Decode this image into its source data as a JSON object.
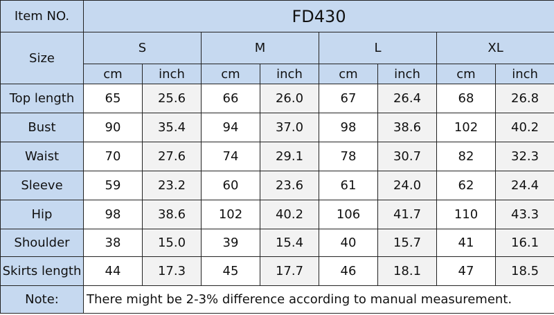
{
  "header": {
    "item_label": "Item NO.",
    "item_value": "FD430",
    "size_label": "Size",
    "sizes": [
      {
        "name": "S",
        "units": [
          "cm",
          "inch"
        ]
      },
      {
        "name": "M",
        "units": [
          "cm",
          "inch"
        ]
      },
      {
        "name": "L",
        "units": [
          "cm",
          "inch"
        ]
      },
      {
        "name": "XL",
        "units": [
          "cm",
          "inch"
        ]
      }
    ]
  },
  "table": {
    "rows": [
      [
        "Top  length",
        "65",
        "25.6",
        "66",
        "26.0",
        "67",
        "26.4",
        "68",
        "26.8"
      ],
      [
        "Bust",
        "90",
        "35.4",
        "94",
        "37.0",
        "98",
        "38.6",
        "102",
        "40.2"
      ],
      [
        "Waist",
        "70",
        "27.6",
        "74",
        "29.1",
        "78",
        "30.7",
        "82",
        "32.3"
      ],
      [
        "Sleeve",
        "59",
        "23.2",
        "60",
        "23.6",
        "61",
        "24.0",
        "62",
        "24.4"
      ],
      [
        "Hip",
        "98",
        "38.6",
        "102",
        "40.2",
        "106",
        "41.7",
        "110",
        "43.3"
      ],
      [
        "Shoulder",
        "38",
        "15.0",
        "39",
        "15.4",
        "40",
        "15.7",
        "41",
        "16.1"
      ],
      [
        "Skirts length",
        "44",
        "17.3",
        "45",
        "17.7",
        "46",
        "18.1",
        "47",
        "18.5"
      ]
    ]
  },
  "note": {
    "label": "Note:",
    "text": "There might be 2-3% difference according to manual measurement."
  }
}
